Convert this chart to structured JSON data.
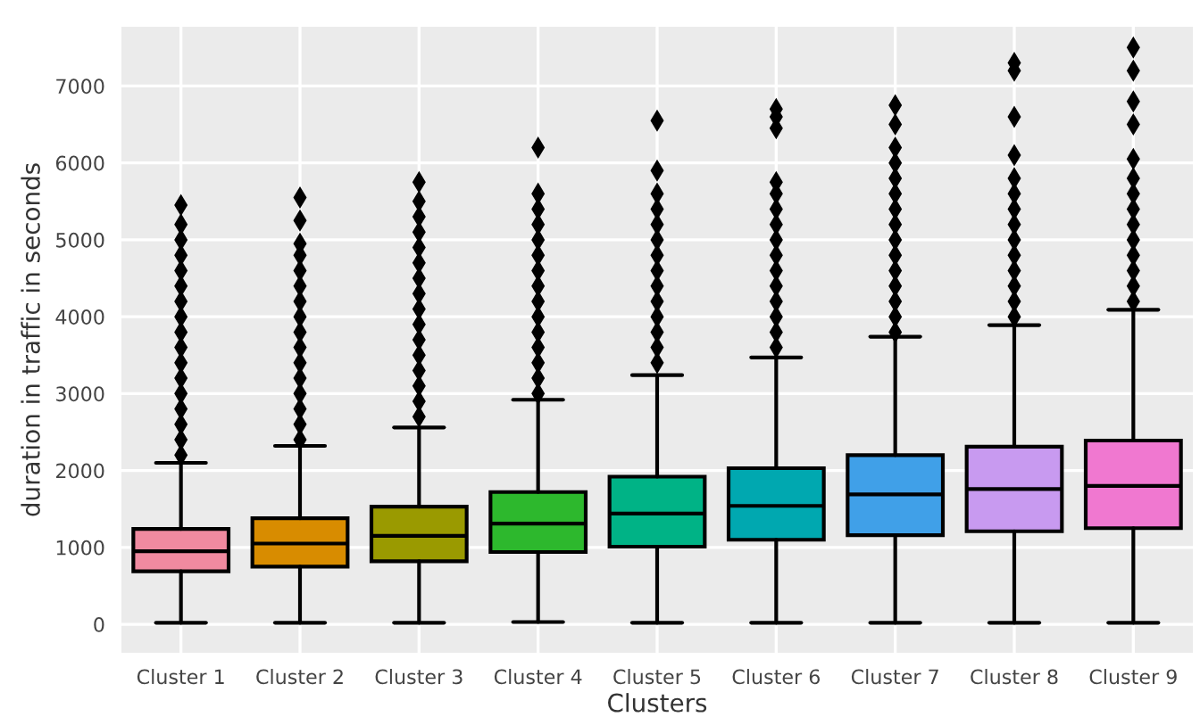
{
  "chart_data": {
    "type": "box",
    "xlabel": "Clusters",
    "ylabel": "duration in traffic in seconds",
    "categories": [
      "Cluster 1",
      "Cluster 2",
      "Cluster 3",
      "Cluster 4",
      "Cluster 5",
      "Cluster 6",
      "Cluster 7",
      "Cluster 8",
      "Cluster 9"
    ],
    "colors": [
      "#f08aa0",
      "#d88c00",
      "#9a9a00",
      "#2db82d",
      "#00b386",
      "#00a8b0",
      "#40a0e8",
      "#c89af0",
      "#f078d0"
    ],
    "boxes": [
      {
        "low": 20,
        "q1": 690,
        "median": 950,
        "q3": 1240,
        "high": 2100,
        "outliers": [
          2200,
          2400,
          2600,
          2800,
          3000,
          3200,
          3400,
          3600,
          3800,
          4000,
          4200,
          4400,
          4600,
          4800,
          5000,
          5200,
          5450
        ]
      },
      {
        "low": 20,
        "q1": 750,
        "median": 1050,
        "q3": 1380,
        "high": 2320,
        "outliers": [
          2400,
          2600,
          2800,
          3000,
          3200,
          3400,
          3600,
          3800,
          4000,
          4200,
          4400,
          4600,
          4800,
          4950,
          5250,
          5550
        ]
      },
      {
        "low": 20,
        "q1": 820,
        "median": 1150,
        "q3": 1530,
        "high": 2560,
        "outliers": [
          2700,
          2900,
          3100,
          3300,
          3500,
          3700,
          3900,
          4100,
          4300,
          4500,
          4700,
          4900,
          5100,
          5300,
          5500,
          5750
        ]
      },
      {
        "low": 30,
        "q1": 940,
        "median": 1310,
        "q3": 1720,
        "high": 2920,
        "outliers": [
          3000,
          3200,
          3400,
          3600,
          3800,
          4000,
          4200,
          4400,
          4600,
          4800,
          5000,
          5200,
          5400,
          5600,
          6200
        ]
      },
      {
        "low": 20,
        "q1": 1010,
        "median": 1440,
        "q3": 1920,
        "high": 3240,
        "outliers": [
          3400,
          3600,
          3800,
          4000,
          4200,
          4400,
          4600,
          4800,
          5000,
          5200,
          5400,
          5600,
          5900,
          6550
        ]
      },
      {
        "low": 20,
        "q1": 1100,
        "median": 1540,
        "q3": 2030,
        "high": 3470,
        "outliers": [
          3600,
          3800,
          4000,
          4200,
          4400,
          4600,
          4800,
          5000,
          5200,
          5400,
          5600,
          5750,
          6450,
          6600,
          6700
        ]
      },
      {
        "low": 20,
        "q1": 1160,
        "median": 1690,
        "q3": 2200,
        "high": 3740,
        "outliers": [
          3800,
          4000,
          4200,
          4400,
          4600,
          4800,
          5000,
          5200,
          5400,
          5600,
          5800,
          6000,
          6200,
          6500,
          6750
        ]
      },
      {
        "low": 20,
        "q1": 1210,
        "median": 1760,
        "q3": 2310,
        "high": 3890,
        "outliers": [
          4000,
          4200,
          4400,
          4600,
          4800,
          5000,
          5200,
          5400,
          5600,
          5800,
          6100,
          6600,
          7200,
          7300
        ]
      },
      {
        "low": 20,
        "q1": 1250,
        "median": 1800,
        "q3": 2390,
        "high": 4090,
        "outliers": [
          4200,
          4400,
          4600,
          4800,
          5000,
          5200,
          5400,
          5600,
          5800,
          6050,
          6500,
          6800,
          7200,
          7500
        ]
      }
    ],
    "ylim": [
      -370,
      7770
    ],
    "yticks": [
      0,
      1000,
      2000,
      3000,
      4000,
      5000,
      6000,
      7000
    ],
    "grid": true,
    "legend": false
  }
}
